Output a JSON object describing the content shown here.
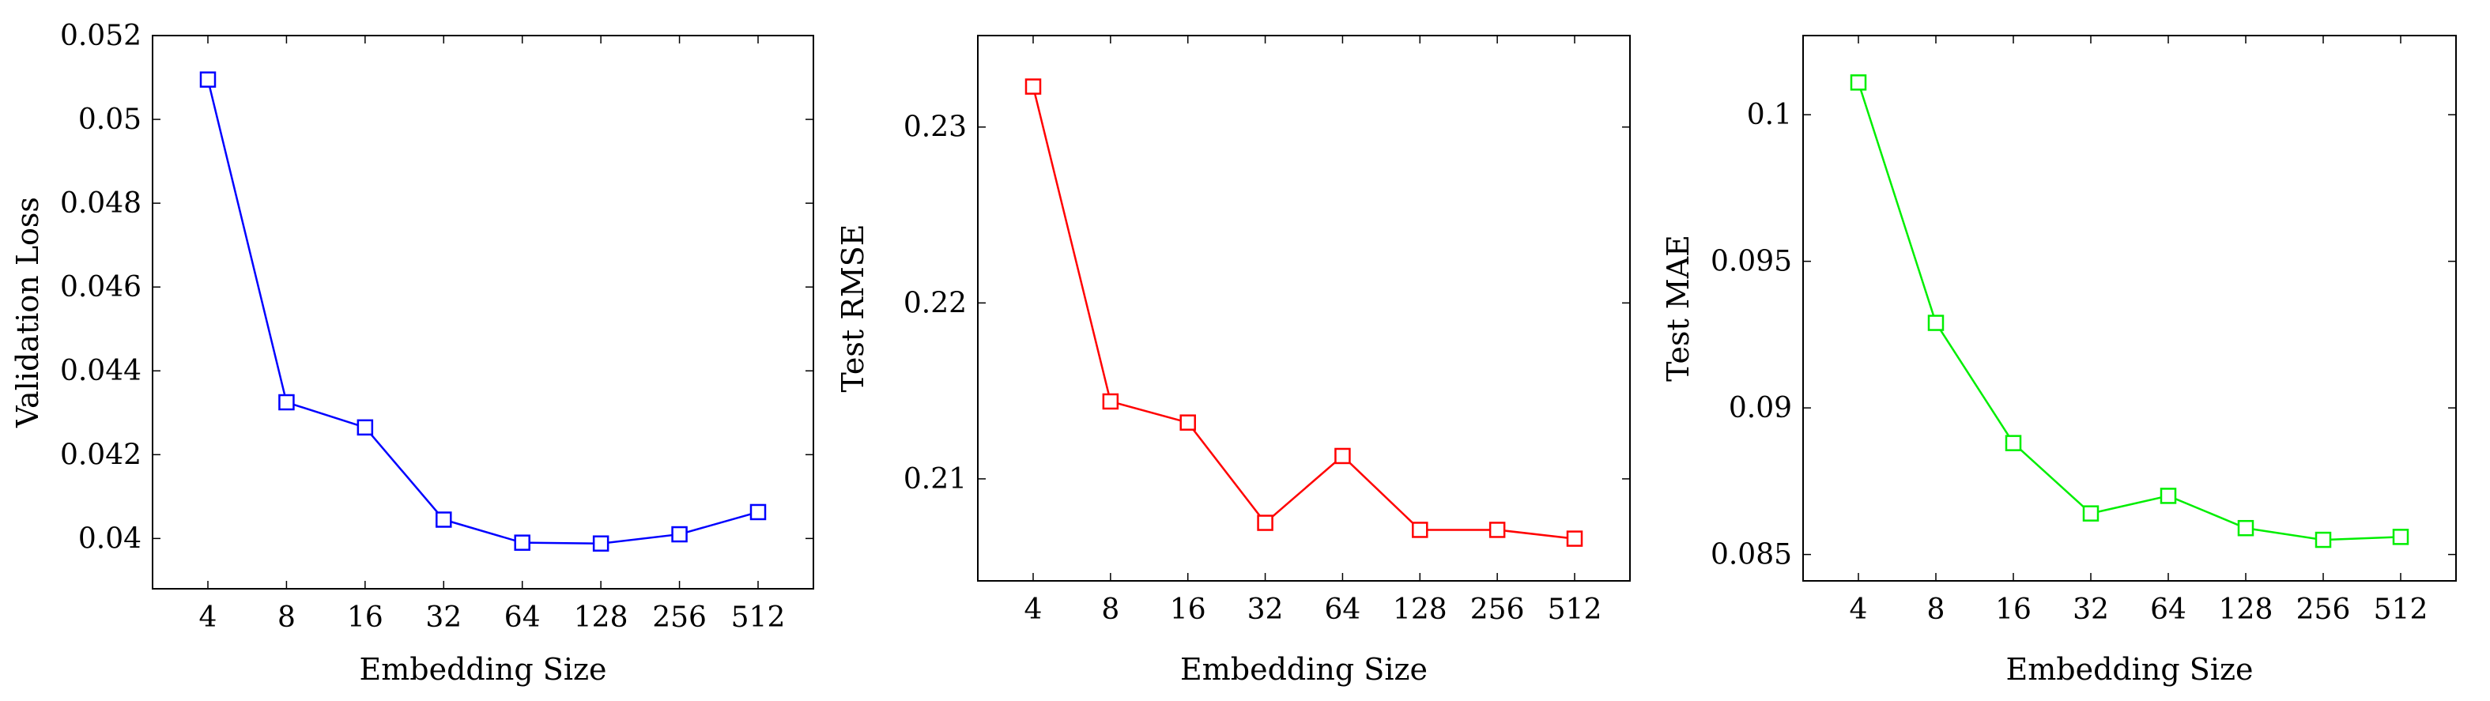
{
  "chart_data": [
    {
      "type": "line",
      "categories": [
        "4",
        "8",
        "16",
        "32",
        "64",
        "128",
        "256",
        "512"
      ],
      "values": [
        0.05095,
        0.04325,
        0.04265,
        0.04045,
        0.0399,
        0.03988,
        0.0401,
        0.04063
      ],
      "xlabel": "Embedding Size",
      "ylabel": "Validation Loss",
      "ylim": [
        0.0388,
        0.052
      ],
      "yticks": [
        0.04,
        0.042,
        0.044,
        0.046,
        0.048,
        0.05,
        0.052
      ],
      "ytick_labels": [
        "0.04",
        "0.042",
        "0.044",
        "0.046",
        "0.048",
        "0.05",
        "0.052"
      ],
      "color": "#0000ff",
      "marker": "square",
      "grid": false
    },
    {
      "type": "line",
      "categories": [
        "4",
        "8",
        "16",
        "32",
        "64",
        "128",
        "256",
        "512"
      ],
      "values": [
        0.2323,
        0.2144,
        0.2132,
        0.2075,
        0.2113,
        0.2071,
        0.2071,
        0.2066
      ],
      "xlabel": "Embedding Size",
      "ylabel": "Test RMSE",
      "ylim": [
        0.2042,
        0.2352
      ],
      "yticks": [
        0.21,
        0.22,
        0.23
      ],
      "ytick_labels": [
        "0.21",
        "0.22",
        "0.23"
      ],
      "color": "#ff0000",
      "marker": "square",
      "grid": false
    },
    {
      "type": "line",
      "categories": [
        "4",
        "8",
        "16",
        "32",
        "64",
        "128",
        "256",
        "512"
      ],
      "values": [
        0.1011,
        0.0929,
        0.0888,
        0.0864,
        0.087,
        0.0859,
        0.0855,
        0.0856
      ],
      "xlabel": "Embedding Size",
      "ylabel": "Test MAE",
      "ylim": [
        0.0841,
        0.1027
      ],
      "yticks": [
        0.085,
        0.09,
        0.095,
        0.1
      ],
      "ytick_labels": [
        "0.085",
        "0.09",
        "0.095",
        "0.1"
      ],
      "color": "#00ee00",
      "marker": "square",
      "grid": false
    }
  ]
}
